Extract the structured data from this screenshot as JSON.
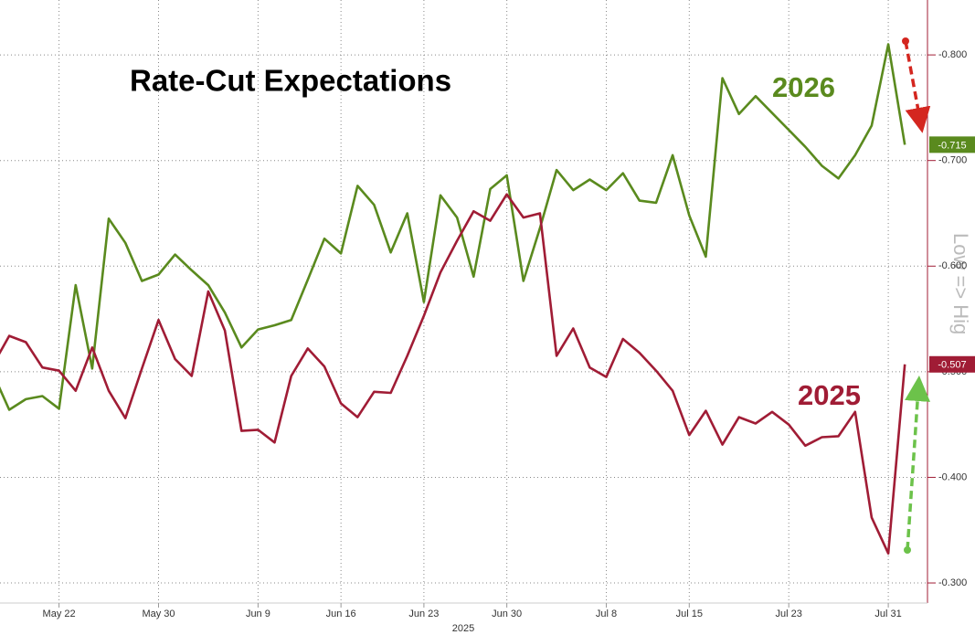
{
  "chart_data": {
    "type": "line",
    "title": "Rate-Cut Expectations",
    "xlabel": "2025",
    "side_label": "Low => Hig",
    "categories": [
      null,
      null,
      null,
      null,
      "May 22",
      null,
      null,
      null,
      null,
      null,
      "May 30",
      null,
      null,
      null,
      null,
      null,
      "Jun 9",
      null,
      null,
      null,
      null,
      "Jun 16",
      null,
      null,
      null,
      null,
      "Jun 23",
      null,
      null,
      null,
      null,
      "Jun 30",
      null,
      null,
      null,
      null,
      null,
      "Jul 8",
      null,
      null,
      null,
      null,
      "Jul 15",
      null,
      null,
      null,
      null,
      null,
      "Jul 23",
      null,
      null,
      null,
      null,
      null,
      "Jul 31",
      null
    ],
    "series": [
      {
        "name": "2026",
        "color": "#5a8a1e",
        "values": [
          -0.499,
          -0.464,
          -0.474,
          -0.477,
          -0.465,
          -0.582,
          -0.503,
          -0.645,
          -0.622,
          -0.586,
          -0.592,
          -0.611,
          -0.596,
          -0.582,
          -0.556,
          -0.523,
          -0.54,
          -0.544,
          -0.549,
          -0.587,
          -0.626,
          -0.612,
          -0.676,
          -0.658,
          -0.613,
          -0.65,
          -0.566,
          -0.667,
          -0.646,
          -0.59,
          -0.673,
          -0.686,
          -0.586,
          -0.636,
          -0.691,
          -0.672,
          -0.682,
          -0.672,
          -0.688,
          -0.662,
          -0.66,
          -0.705,
          -0.648,
          -0.609,
          -0.778,
          -0.744,
          -0.761,
          -0.745,
          -0.729,
          -0.713,
          -0.695,
          -0.683,
          -0.705,
          -0.733,
          -0.81,
          -0.715
        ],
        "value_labels": [
          null,
          null,
          null,
          null,
          null,
          null,
          null,
          null,
          null,
          null,
          null,
          null,
          null,
          null,
          null,
          null,
          null,
          null,
          null,
          null,
          null,
          null,
          null,
          null,
          null,
          null,
          null,
          null,
          null,
          null,
          null,
          null,
          null,
          null,
          null,
          null,
          null,
          null,
          null,
          null,
          null,
          null,
          null,
          null,
          null,
          null,
          null,
          null,
          null,
          null,
          null,
          null,
          null,
          null,
          null,
          "-0.715"
        ]
      },
      {
        "name": "2025",
        "color": "#a01c35",
        "values": [
          -0.506,
          -0.534,
          -0.528,
          -0.504,
          -0.501,
          -0.482,
          -0.523,
          -0.482,
          -0.456,
          -0.503,
          -0.549,
          -0.512,
          -0.496,
          -0.576,
          -0.539,
          -0.444,
          -0.445,
          -0.433,
          -0.496,
          -0.522,
          -0.505,
          -0.47,
          -0.457,
          -0.481,
          -0.48,
          -0.515,
          -0.553,
          -0.594,
          -0.624,
          -0.652,
          -0.643,
          -0.668,
          -0.646,
          -0.65,
          -0.515,
          -0.541,
          -0.504,
          -0.495,
          -0.531,
          -0.518,
          -0.501,
          -0.482,
          -0.44,
          -0.463,
          -0.431,
          -0.457,
          -0.451,
          -0.462,
          -0.45,
          -0.43,
          -0.438,
          -0.439,
          -0.462,
          -0.362,
          -0.328,
          -0.507
        ],
        "value_labels": [
          null,
          null,
          null,
          null,
          null,
          null,
          null,
          null,
          null,
          null,
          null,
          null,
          null,
          null,
          null,
          null,
          null,
          null,
          null,
          null,
          null,
          null,
          null,
          null,
          null,
          null,
          null,
          null,
          null,
          null,
          null,
          null,
          null,
          null,
          null,
          null,
          null,
          null,
          null,
          null,
          null,
          null,
          null,
          null,
          null,
          null,
          null,
          null,
          null,
          null,
          null,
          null,
          null,
          null,
          null,
          "-0.507"
        ]
      }
    ],
    "ylim": [
      -0.281,
      -0.852
    ],
    "yticks": [
      {
        "value": -0.8,
        "label": "-0.800"
      },
      {
        "value": -0.7,
        "label": "-0.700"
      },
      {
        "value": -0.6,
        "label": "-0.600"
      },
      {
        "value": -0.5,
        "label": "-0.500"
      },
      {
        "value": -0.4,
        "label": "-0.400"
      },
      {
        "value": -0.3,
        "label": "-0.300"
      }
    ],
    "grid": true
  }
}
